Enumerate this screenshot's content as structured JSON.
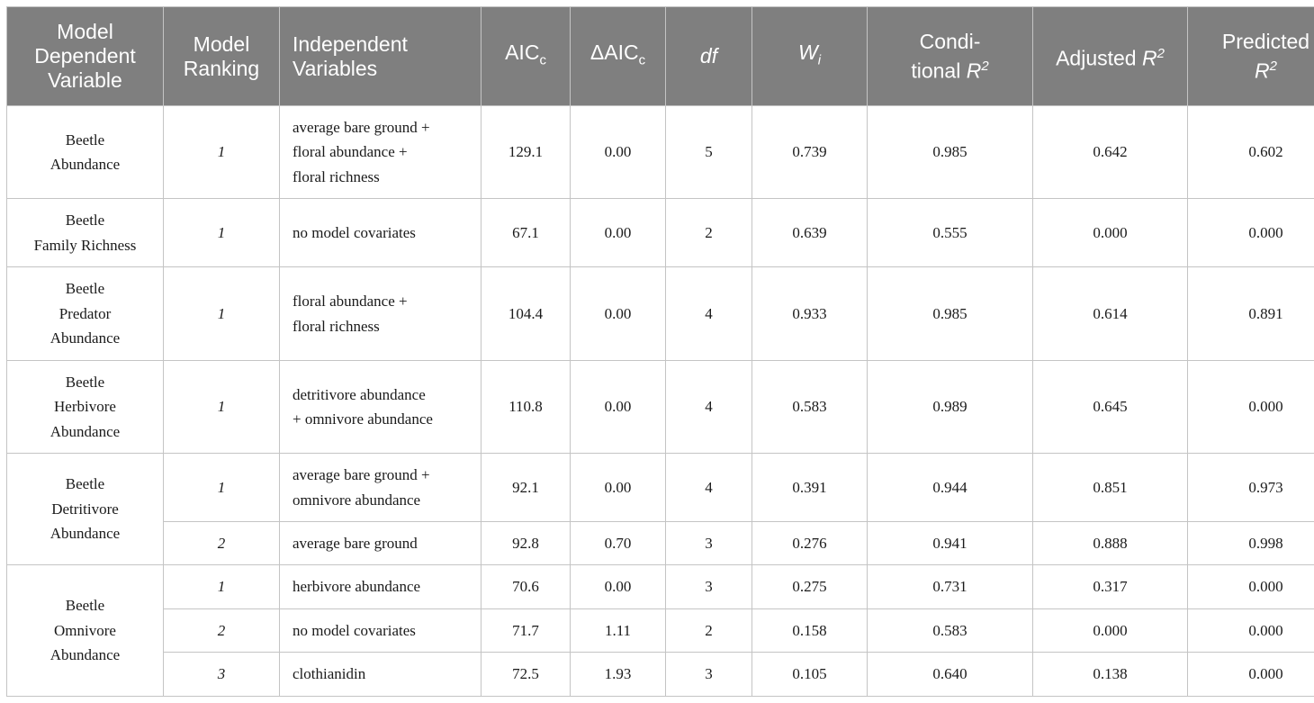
{
  "header": {
    "dependent": [
      "Model",
      "Dependent",
      "Variable"
    ],
    "ranking": [
      "Model",
      "Ranking"
    ],
    "independent": [
      "Independent",
      "Variables"
    ],
    "aicc_base": "AIC",
    "aicc_sub": "c",
    "daicc_base": "ΔAIC",
    "daicc_sub": "c",
    "df": "df",
    "wi_base": "W",
    "wi_sub": "i",
    "cond_line1": "Condi-",
    "cond_line2": "tional ",
    "cond_r": "R",
    "cond_sup": "2",
    "adj_text": "Adjusted ",
    "adj_r": "R",
    "adj_sup": "2",
    "pred_line1": "Predicted",
    "pred_r": "R",
    "pred_sup": "2"
  },
  "groups": [
    {
      "name": [
        "Beetle",
        "Abundance"
      ]
    },
    {
      "name": [
        "Beetle",
        "Family Richness"
      ]
    },
    {
      "name": [
        "Beetle",
        "Predator",
        "Abundance"
      ]
    },
    {
      "name": [
        "Beetle",
        "Herbivore",
        "Abundance"
      ]
    },
    {
      "name": [
        "Beetle",
        "Detritivore",
        "Abundance"
      ]
    },
    {
      "name": [
        "Beetle",
        "Omnivore",
        "Abundance"
      ]
    }
  ],
  "rows": [
    {
      "rank": "1",
      "vars": [
        "average bare ground +",
        "floral abundance +",
        "floral richness"
      ],
      "aicc": "129.1",
      "daicc": "0.00",
      "df": "5",
      "wi": "0.739",
      "cond": "0.985",
      "adj": "0.642",
      "pred": "0.602"
    },
    {
      "rank": "1",
      "vars": [
        "no model covariates"
      ],
      "aicc": "67.1",
      "daicc": "0.00",
      "df": "2",
      "wi": "0.639",
      "cond": "0.555",
      "adj": "0.000",
      "pred": "0.000"
    },
    {
      "rank": "1",
      "vars": [
        "floral abundance +",
        "floral richness"
      ],
      "aicc": "104.4",
      "daicc": "0.00",
      "df": "4",
      "wi": "0.933",
      "cond": "0.985",
      "adj": "0.614",
      "pred": "0.891"
    },
    {
      "rank": "1",
      "vars": [
        "detritivore abundance",
        "+ omnivore abundance"
      ],
      "aicc": "110.8",
      "daicc": "0.00",
      "df": "4",
      "wi": "0.583",
      "cond": "0.989",
      "adj": "0.645",
      "pred": "0.000"
    },
    {
      "rank": "1",
      "vars": [
        "average bare ground +",
        "omnivore abundance"
      ],
      "aicc": "92.1",
      "daicc": "0.00",
      "df": "4",
      "wi": "0.391",
      "cond": "0.944",
      "adj": "0.851",
      "pred": "0.973"
    },
    {
      "rank": "2",
      "vars": [
        "average bare ground"
      ],
      "aicc": "92.8",
      "daicc": "0.70",
      "df": "3",
      "wi": "0.276",
      "cond": "0.941",
      "adj": "0.888",
      "pred": "0.998"
    },
    {
      "rank": "1",
      "vars": [
        "herbivore abundance"
      ],
      "aicc": "70.6",
      "daicc": "0.00",
      "df": "3",
      "wi": "0.275",
      "cond": "0.731",
      "adj": "0.317",
      "pred": "0.000"
    },
    {
      "rank": "2",
      "vars": [
        "no model covariates"
      ],
      "aicc": "71.7",
      "daicc": "1.11",
      "df": "2",
      "wi": "0.158",
      "cond": "0.583",
      "adj": "0.000",
      "pred": "0.000"
    },
    {
      "rank": "3",
      "vars": [
        "clothianidin"
      ],
      "aicc": "72.5",
      "daicc": "1.93",
      "df": "3",
      "wi": "0.105",
      "cond": "0.640",
      "adj": "0.138",
      "pred": "0.000"
    }
  ]
}
